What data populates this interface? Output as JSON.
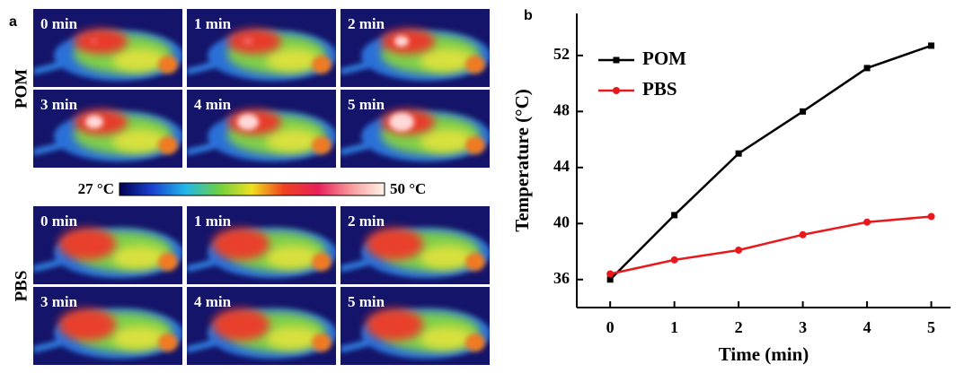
{
  "panel_a": {
    "label": "a",
    "groups": [
      {
        "name": "POM",
        "frames": [
          "0 min",
          "1 min",
          "2 min",
          "3 min",
          "4 min",
          "5 min"
        ]
      },
      {
        "name": "PBS",
        "frames": [
          "0 min",
          "1 min",
          "2 min",
          "3 min",
          "4 min",
          "5 min"
        ]
      }
    ],
    "colorbar": {
      "min_label": "27 °C",
      "max_label": "50 °C"
    }
  },
  "chart_data": {
    "type": "line",
    "label": "b",
    "x_label": "Time (min)",
    "y_label": "Temperature (°C)",
    "x": [
      0,
      1,
      2,
      3,
      4,
      5
    ],
    "series": [
      {
        "name": "POM",
        "color": "#000000",
        "marker": "square",
        "values": [
          36,
          40.6,
          45,
          48,
          51.1,
          52.7
        ]
      },
      {
        "name": "PBS",
        "color": "#e8191c",
        "marker": "circle",
        "values": [
          36.4,
          37.4,
          38.1,
          39.2,
          40.1,
          40.5
        ]
      }
    ],
    "xlim": [
      -0.52,
      5.3
    ],
    "ylim": [
      34,
      55
    ],
    "xticks": [
      0,
      1,
      2,
      3,
      4,
      5
    ],
    "yticks": [
      36,
      40,
      44,
      48,
      52
    ],
    "legend": "upper-left",
    "grid": false
  }
}
